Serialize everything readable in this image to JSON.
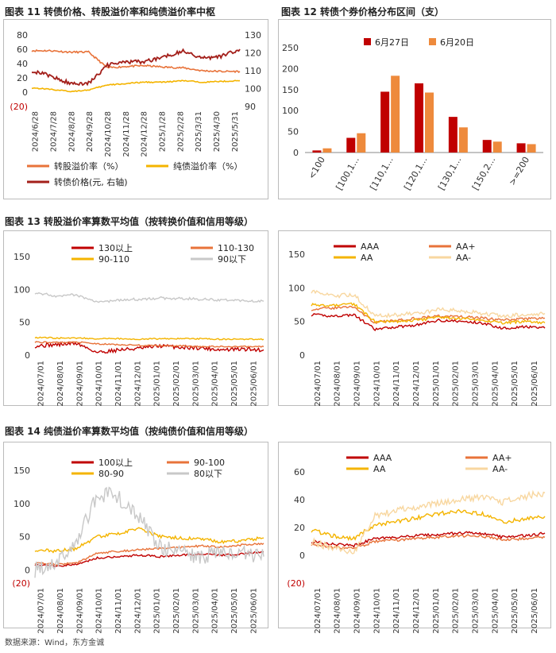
{
  "fig11": {
    "title": "图表 11  转债价格、转股溢价率和纯债溢价率中枢",
    "legend": [
      "转股溢价率（%）",
      "纯债溢价率（%）",
      "转债价格(元, 右轴)"
    ],
    "colors": [
      "#e8733a",
      "#f4b400",
      "#a31f1a"
    ],
    "y_left_ticks": [
      "80",
      "60",
      "40",
      "20",
      "0",
      "(20)"
    ],
    "y_right_ticks": [
      "130",
      "120",
      "110",
      "100",
      "90"
    ],
    "x_ticks": [
      "2024/6/28",
      "2024/7/28",
      "2024/8/28",
      "2024/9/28",
      "2024/10/28",
      "2024/11/28",
      "2024/12/28",
      "2025/1/28",
      "2025/2/28",
      "2025/3/31",
      "2025/4/30",
      "2025/5/31"
    ]
  },
  "fig12": {
    "title": "图表 12  转债个券价格分布区间（支）",
    "legend": [
      "6月27日",
      "6月20日"
    ],
    "colors": [
      "#c00000",
      "#ee8a3c"
    ],
    "y_ticks": [
      "250",
      "200",
      "150",
      "100",
      "50",
      "0"
    ]
  },
  "fig13": {
    "title": "图表 13  转股溢价率算数平均值（按转换价值和信用等级）",
    "left_legend": [
      "130以上",
      "110-130",
      "90-110",
      "90以下"
    ],
    "left_colors": [
      "#c00000",
      "#e8733a",
      "#f4b400",
      "#c8c8c8"
    ],
    "right_legend": [
      "AAA",
      "AA+",
      "AA",
      "AA-"
    ],
    "right_colors": [
      "#c00000",
      "#e8733a",
      "#f4b400",
      "#f8d7a0"
    ],
    "y_ticks": [
      "150",
      "100",
      "50",
      "0"
    ],
    "x_ticks": [
      "2024/07/01",
      "2024/08/01",
      "2024/09/01",
      "2024/10/01",
      "2024/11/01",
      "2024/12/01",
      "2025/01/01",
      "2025/02/01",
      "2025/03/01",
      "2025/04/01",
      "2025/05/01",
      "2025/06/01"
    ]
  },
  "fig14": {
    "title": "图表 14  纯债溢价率算数平均值（按纯债价值和信用等级）",
    "left_legend": [
      "100以上",
      "90-100",
      "80-90",
      "80以下"
    ],
    "left_colors": [
      "#c00000",
      "#e8733a",
      "#f4b400",
      "#c8c8c8"
    ],
    "right_legend": [
      "AAA",
      "AA+",
      "AA",
      "AA-"
    ],
    "right_colors": [
      "#c00000",
      "#e8733a",
      "#f4b400",
      "#f8d7a0"
    ],
    "left_y_ticks": [
      "150",
      "100",
      "50",
      "0",
      "(20)"
    ],
    "right_y_ticks": [
      "60",
      "40",
      "20",
      "0",
      "(20)"
    ],
    "x_ticks": [
      "2024/07/01",
      "2024/08/01",
      "2024/09/01",
      "2024/10/01",
      "2024/11/01",
      "2024/12/01",
      "2025/01/01",
      "2025/02/01",
      "2025/03/01",
      "2025/04/01",
      "2025/05/01",
      "2025/06/01"
    ]
  },
  "source": "数据来源：Wind，东方金诚",
  "chart_data": [
    {
      "type": "line",
      "title": "图表 11  转债价格、转股溢价率和纯债溢价率中枢",
      "x": [
        "2024/6/28",
        "2024/7/28",
        "2024/8/28",
        "2024/9/28",
        "2024/10/28",
        "2024/11/28",
        "2024/12/28",
        "2025/1/28",
        "2025/2/28",
        "2025/3/31",
        "2025/4/30",
        "2025/5/31"
      ],
      "ylim": [
        -20,
        80
      ],
      "y2lim": [
        90,
        130
      ],
      "series": [
        {
          "name": "转股溢价率（%）",
          "axis": "left",
          "values": [
            58,
            58,
            56,
            56,
            34,
            36,
            37,
            35,
            34,
            30,
            29,
            29
          ]
        },
        {
          "name": "纯债溢价率（%）",
          "axis": "left",
          "values": [
            6,
            4,
            1,
            3,
            10,
            12,
            14,
            14,
            16,
            14,
            15,
            16
          ]
        },
        {
          "name": "转债价格(元, 右轴)",
          "axis": "right",
          "values": [
            110,
            107,
            103,
            103,
            113,
            115,
            115,
            118,
            121,
            117,
            118,
            122
          ]
        }
      ],
      "legend_position": "bottom"
    },
    {
      "type": "bar",
      "title": "图表 12  转债个券价格分布区间（支）",
      "categories": [
        "<100",
        "[100,1...",
        "[110,1...",
        "[120,1...",
        "[130,1...",
        "[150,2...",
        ">=200"
      ],
      "ylim": [
        0,
        250
      ],
      "series": [
        {
          "name": "6月27日",
          "values": [
            5,
            35,
            145,
            165,
            85,
            30,
            22
          ]
        },
        {
          "name": "6月20日",
          "values": [
            10,
            46,
            183,
            143,
            60,
            26,
            20
          ]
        }
      ],
      "legend_position": "top"
    },
    {
      "type": "line",
      "title": "图表 13  转股溢价率算数平均值（按转换价值和信用等级）",
      "x": [
        "2024/07/01",
        "2024/08/01",
        "2024/09/01",
        "2024/10/01",
        "2024/11/01",
        "2024/12/01",
        "2025/01/01",
        "2025/02/01",
        "2025/03/01",
        "2025/04/01",
        "2025/05/01",
        "2025/06/01"
      ],
      "ylim": [
        0,
        150
      ],
      "series": [
        {
          "name": "130以上",
          "values": [
            14,
            16,
            18,
            4,
            8,
            10,
            14,
            12,
            11,
            8,
            9,
            8
          ]
        },
        {
          "name": "110-130",
          "values": [
            20,
            19,
            20,
            17,
            16,
            15,
            14,
            14,
            13,
            13,
            13,
            13
          ]
        },
        {
          "name": "90-110",
          "values": [
            27,
            26,
            26,
            25,
            25,
            24,
            25,
            25,
            25,
            24,
            24,
            24
          ]
        },
        {
          "name": "90以下",
          "values": [
            95,
            90,
            92,
            80,
            84,
            85,
            87,
            86,
            85,
            84,
            83,
            82
          ]
        }
      ],
      "legend_position": "top"
    },
    {
      "type": "line",
      "x": [
        "2024/07/01",
        "2024/08/01",
        "2024/09/01",
        "2024/10/01",
        "2024/11/01",
        "2024/12/01",
        "2025/01/01",
        "2025/02/01",
        "2025/03/01",
        "2025/04/01",
        "2025/05/01",
        "2025/06/01"
      ],
      "ylim": [
        0,
        150
      ],
      "series": [
        {
          "name": "AAA",
          "values": [
            60,
            58,
            60,
            38,
            42,
            45,
            52,
            50,
            48,
            40,
            42,
            40
          ]
        },
        {
          "name": "AA+",
          "values": [
            68,
            70,
            72,
            48,
            52,
            55,
            58,
            57,
            55,
            52,
            54,
            55
          ]
        },
        {
          "name": "AA",
          "values": [
            75,
            74,
            76,
            50,
            50,
            52,
            56,
            54,
            52,
            48,
            50,
            48
          ]
        },
        {
          "name": "AA-",
          "values": [
            95,
            88,
            90,
            58,
            60,
            62,
            68,
            66,
            62,
            58,
            60,
            62
          ]
        }
      ],
      "legend_position": "top"
    },
    {
      "type": "line",
      "title": "图表 14  纯债溢价率算数平均值（按纯债价值和信用等级）",
      "x": [
        "2024/07/01",
        "2024/08/01",
        "2024/09/01",
        "2024/10/01",
        "2024/11/01",
        "2024/12/01",
        "2025/01/01",
        "2025/02/01",
        "2025/03/01",
        "2025/04/01",
        "2025/05/01",
        "2025/06/01"
      ],
      "ylim": [
        -20,
        150
      ],
      "series": [
        {
          "name": "100以上",
          "values": [
            8,
            6,
            8,
            18,
            20,
            22,
            20,
            22,
            24,
            22,
            24,
            27
          ]
        },
        {
          "name": "90-100",
          "values": [
            10,
            8,
            10,
            25,
            28,
            30,
            32,
            34,
            36,
            34,
            38,
            40
          ]
        },
        {
          "name": "80-90",
          "values": [
            30,
            28,
            32,
            50,
            55,
            62,
            50,
            48,
            46,
            42,
            44,
            48
          ]
        },
        {
          "name": "80以下",
          "values": [
            0,
            10,
            40,
            115,
            110,
            80,
            35,
            25,
            20,
            28,
            25,
            20
          ]
        }
      ],
      "legend_position": "top"
    },
    {
      "type": "line",
      "x": [
        "2024/07/01",
        "2024/08/01",
        "2024/09/01",
        "2024/10/01",
        "2024/11/01",
        "2024/12/01",
        "2025/01/01",
        "2025/02/01",
        "2025/03/01",
        "2025/04/01",
        "2025/05/01",
        "2025/06/01"
      ],
      "ylim": [
        -20,
        60
      ],
      "series": [
        {
          "name": "AAA",
          "values": [
            10,
            8,
            7,
            12,
            13,
            14,
            15,
            16,
            16,
            13,
            14,
            16
          ]
        },
        {
          "name": "AA+",
          "values": [
            8,
            6,
            5,
            10,
            11,
            12,
            13,
            14,
            14,
            11,
            12,
            13
          ]
        },
        {
          "name": "AA",
          "values": [
            18,
            14,
            12,
            22,
            24,
            27,
            30,
            32,
            30,
            24,
            26,
            28
          ]
        },
        {
          "name": "AA-",
          "values": [
            10,
            5,
            2,
            28,
            32,
            35,
            38,
            40,
            42,
            38,
            42,
            45
          ]
        }
      ],
      "legend_position": "top"
    }
  ]
}
